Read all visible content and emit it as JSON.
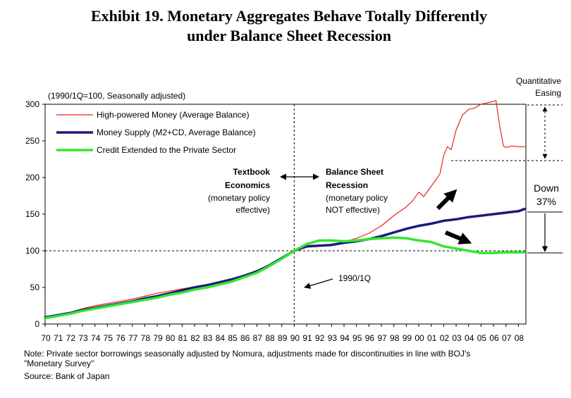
{
  "title_line1": "Exhibit 19.  Monetary Aggregates Behave Totally Differently",
  "title_line2": "under Balance Sheet Recession",
  "unit_note": "(1990/1Q=100, Seasonally adjusted)",
  "legend": {
    "hp": "High-powered Money (Average Balance)",
    "ms": "Money Supply (M2+CD, Average Balance)",
    "cr": "Credit Extended to the Private Sector"
  },
  "annotations": {
    "textbook": [
      "Textbook",
      "Economics",
      "(monetary policy",
      "effective)"
    ],
    "bsr": [
      "Balance Sheet",
      "Recession",
      "(monetary policy",
      "NOT effective)"
    ],
    "q1990": "1990/1Q",
    "qe": [
      "Quantitative",
      "Easing"
    ],
    "down": [
      "Down",
      "37%"
    ]
  },
  "notes": {
    "line1": "Note: Private sector borrowings seasonally adjusted by Nomura, adjustments made for discontinuities in line with BOJ's",
    "line2": "\"Monetary Survey\"",
    "line3": "Source: Bank of Japan"
  },
  "colors": {
    "hp": "#e8231f",
    "ms": "#1b1a7a",
    "cr": "#33e62e",
    "arrow": "#000000"
  },
  "chart_data": {
    "type": "line",
    "ylim": [
      0,
      300
    ],
    "yticks": [
      0,
      50,
      100,
      150,
      200,
      250,
      300
    ],
    "xlim": [
      1970,
      2008.6
    ],
    "xticks": [
      "70",
      "71",
      "72",
      "73",
      "74",
      "75",
      "76",
      "77",
      "78",
      "79",
      "80",
      "81",
      "82",
      "83",
      "84",
      "85",
      "86",
      "87",
      "88",
      "89",
      "90",
      "91",
      "92",
      "93",
      "94",
      "95",
      "96",
      "97",
      "98",
      "99",
      "00",
      "01",
      "02",
      "03",
      "04",
      "05",
      "06",
      "07",
      "08"
    ],
    "reference_lines": {
      "x": 1990,
      "y": 100
    },
    "series": [
      {
        "name": "High-powered Money (Average Balance)",
        "key": "hp",
        "points": [
          [
            1970,
            10
          ],
          [
            1971,
            13
          ],
          [
            1972,
            16
          ],
          [
            1973,
            21
          ],
          [
            1974,
            25
          ],
          [
            1975,
            28
          ],
          [
            1976,
            31
          ],
          [
            1977,
            34
          ],
          [
            1978,
            38
          ],
          [
            1979,
            42
          ],
          [
            1980,
            45
          ],
          [
            1981,
            48
          ],
          [
            1982,
            51
          ],
          [
            1983,
            54
          ],
          [
            1984,
            57
          ],
          [
            1985,
            61
          ],
          [
            1986,
            66
          ],
          [
            1987,
            72
          ],
          [
            1988,
            80
          ],
          [
            1989,
            90
          ],
          [
            1990,
            100
          ],
          [
            1991,
            105
          ],
          [
            1992,
            106
          ],
          [
            1993,
            109
          ],
          [
            1994,
            112
          ],
          [
            1995,
            117
          ],
          [
            1996,
            124
          ],
          [
            1997,
            134
          ],
          [
            1998,
            148
          ],
          [
            1999,
            160
          ],
          [
            1999.5,
            168
          ],
          [
            2000,
            180
          ],
          [
            2000.4,
            174
          ],
          [
            2001,
            188
          ],
          [
            2001.7,
            205
          ],
          [
            2002,
            230
          ],
          [
            2002.3,
            242
          ],
          [
            2002.6,
            238
          ],
          [
            2003,
            265
          ],
          [
            2003.5,
            285
          ],
          [
            2004,
            293
          ],
          [
            2004.5,
            295
          ],
          [
            2005,
            300
          ],
          [
            2005.5,
            302
          ],
          [
            2006,
            304
          ],
          [
            2006.2,
            305
          ],
          [
            2006.5,
            270
          ],
          [
            2006.8,
            243
          ],
          [
            2007,
            241
          ],
          [
            2007.5,
            243
          ],
          [
            2008,
            242
          ],
          [
            2008.5,
            242
          ]
        ]
      },
      {
        "name": "Money Supply (M2+CD, Average Balance)",
        "key": "ms",
        "points": [
          [
            1970,
            9
          ],
          [
            1971,
            12
          ],
          [
            1972,
            15
          ],
          [
            1973,
            19
          ],
          [
            1974,
            22
          ],
          [
            1975,
            25
          ],
          [
            1976,
            28
          ],
          [
            1977,
            31
          ],
          [
            1978,
            35
          ],
          [
            1979,
            38
          ],
          [
            1980,
            42
          ],
          [
            1981,
            46
          ],
          [
            1982,
            50
          ],
          [
            1983,
            53
          ],
          [
            1984,
            57
          ],
          [
            1985,
            61
          ],
          [
            1986,
            66
          ],
          [
            1987,
            72
          ],
          [
            1988,
            80
          ],
          [
            1989,
            90
          ],
          [
            1990,
            100
          ],
          [
            1991,
            106
          ],
          [
            1992,
            107
          ],
          [
            1993,
            108
          ],
          [
            1994,
            111
          ],
          [
            1995,
            113
          ],
          [
            1996,
            116
          ],
          [
            1997,
            120
          ],
          [
            1998,
            125
          ],
          [
            1999,
            130
          ],
          [
            2000,
            134
          ],
          [
            2001,
            137
          ],
          [
            2002,
            141
          ],
          [
            2003,
            143
          ],
          [
            2004,
            146
          ],
          [
            2005,
            148
          ],
          [
            2006,
            150
          ],
          [
            2007,
            152
          ],
          [
            2008,
            154
          ],
          [
            2008.5,
            157
          ]
        ]
      },
      {
        "name": "Credit Extended to the Private Sector",
        "key": "cr",
        "points": [
          [
            1970,
            8
          ],
          [
            1971,
            11
          ],
          [
            1972,
            14
          ],
          [
            1973,
            18
          ],
          [
            1974,
            21
          ],
          [
            1975,
            24
          ],
          [
            1976,
            27
          ],
          [
            1977,
            30
          ],
          [
            1978,
            33
          ],
          [
            1979,
            36
          ],
          [
            1980,
            40
          ],
          [
            1981,
            43
          ],
          [
            1982,
            47
          ],
          [
            1983,
            50
          ],
          [
            1984,
            54
          ],
          [
            1985,
            58
          ],
          [
            1986,
            64
          ],
          [
            1987,
            70
          ],
          [
            1988,
            79
          ],
          [
            1989,
            89
          ],
          [
            1990,
            100
          ],
          [
            1991,
            109
          ],
          [
            1992,
            114
          ],
          [
            1993,
            114
          ],
          [
            1994,
            113
          ],
          [
            1995,
            114
          ],
          [
            1996,
            116
          ],
          [
            1997,
            117
          ],
          [
            1998,
            118
          ],
          [
            1999,
            117
          ],
          [
            2000,
            114
          ],
          [
            2001,
            112
          ],
          [
            2002,
            106
          ],
          [
            2003,
            103
          ],
          [
            2004,
            100
          ],
          [
            2005,
            97
          ],
          [
            2006,
            97
          ],
          [
            2007,
            98
          ],
          [
            2008,
            98
          ],
          [
            2008.5,
            98
          ]
        ]
      }
    ]
  }
}
